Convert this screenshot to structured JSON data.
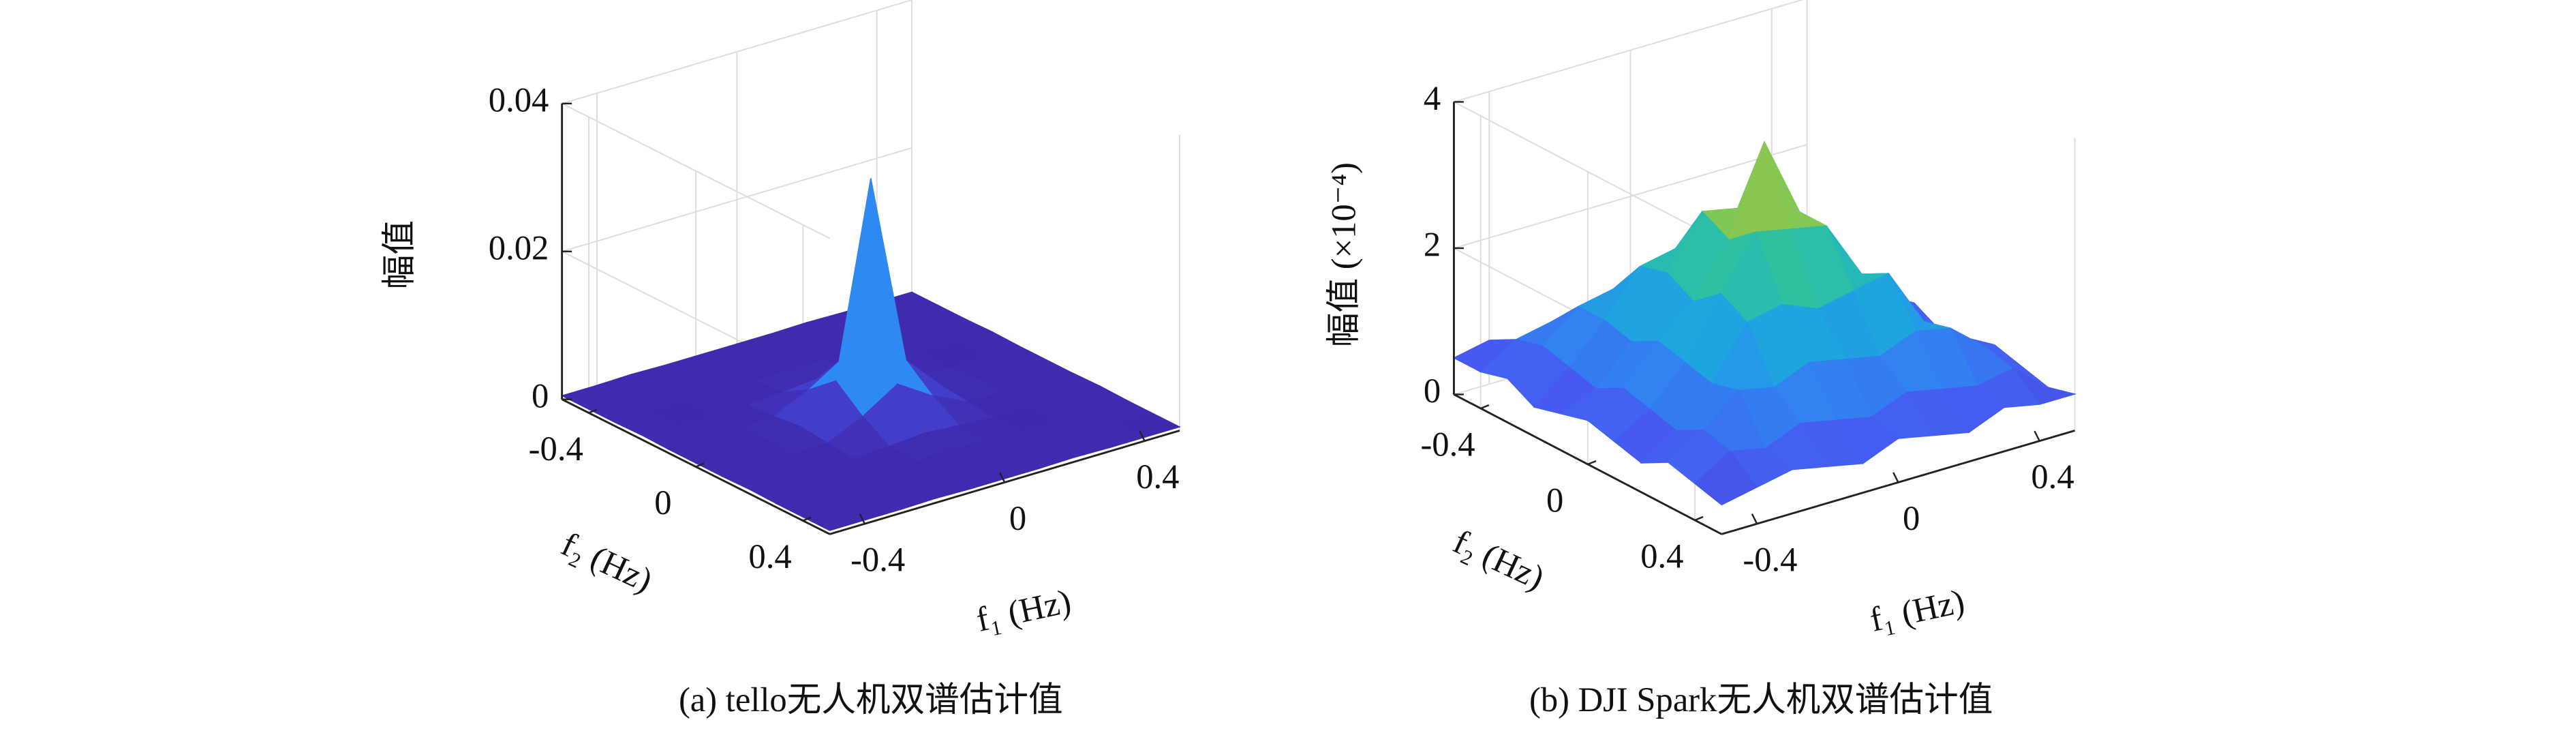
{
  "chart_data": [
    {
      "type": "surface",
      "caption": "(a) tello无人机双谱估计值",
      "xlabel": "f₁ (Hz)",
      "ylabel": "f₂ (Hz)",
      "zlabel": "幅值",
      "x": [
        -0.5,
        -0.4,
        -0.3,
        -0.2,
        -0.1,
        0,
        0.1,
        0.2,
        0.3,
        0.4,
        0.5
      ],
      "y": [
        -0.5,
        -0.4,
        -0.3,
        -0.2,
        -0.1,
        0,
        0.1,
        0.2,
        0.3,
        0.4,
        0.5
      ],
      "xlim": [
        -0.5,
        0.5
      ],
      "ylim": [
        -0.5,
        0.5
      ],
      "zlim": [
        0,
        0.04
      ],
      "xticks": [
        -0.4,
        0,
        0.4
      ],
      "yticks": [
        -0.4,
        0,
        0.4
      ],
      "zticks": [
        0,
        0.02,
        0.04
      ],
      "colormap": "parula",
      "grid": true,
      "z": [
        [
          0.0005,
          0.0005,
          0.0006,
          0.0005,
          0.0005,
          0.0005,
          0.0005,
          0.0006,
          0.0005,
          0.0005,
          0.0005
        ],
        [
          0.0005,
          0.0006,
          0.0005,
          0.0005,
          0.0006,
          0.0005,
          0.0006,
          0.0005,
          0.0005,
          0.0006,
          0.0005
        ],
        [
          0.0005,
          0.0005,
          0.0005,
          0.0006,
          0.0005,
          0.0008,
          0.0005,
          0.0005,
          0.0006,
          0.0005,
          0.0005
        ],
        [
          0.0006,
          0.0005,
          0.0005,
          0.0005,
          0.0008,
          0.0012,
          0.0008,
          0.0005,
          0.0005,
          0.0005,
          0.0006
        ],
        [
          0.0005,
          0.0005,
          0.0006,
          0.0008,
          0.003,
          0.006,
          0.003,
          0.0008,
          0.0005,
          0.0005,
          0.0005
        ],
        [
          0.0005,
          0.0006,
          0.0008,
          0.0012,
          0.006,
          0.032,
          0.006,
          0.0012,
          0.0008,
          0.0006,
          0.0005
        ],
        [
          0.0005,
          0.0005,
          0.0006,
          0.0008,
          0.003,
          0.006,
          0.003,
          0.0008,
          0.0006,
          0.0005,
          0.0005
        ],
        [
          0.0006,
          0.0005,
          0.0005,
          0.0005,
          0.0008,
          0.0012,
          0.0008,
          0.0005,
          0.0005,
          0.0005,
          0.0006
        ],
        [
          0.0005,
          0.0005,
          0.0006,
          0.0005,
          0.0005,
          0.0008,
          0.0005,
          0.0005,
          0.0005,
          0.0006,
          0.0005
        ],
        [
          0.0005,
          0.0006,
          0.0005,
          0.0005,
          0.0006,
          0.0005,
          0.0006,
          0.0005,
          0.0006,
          0.0005,
          0.0005
        ],
        [
          0.0005,
          0.0005,
          0.0005,
          0.0006,
          0.0005,
          0.0005,
          0.0005,
          0.0006,
          0.0005,
          0.0005,
          0.0005
        ]
      ]
    },
    {
      "type": "surface",
      "caption": "(b) DJI Spark无人机双谱估计值",
      "xlabel": "f₁ (Hz)",
      "ylabel": "f₂ (Hz)",
      "zlabel": "幅值 (×10⁻⁴)",
      "x": [
        -0.5,
        -0.4,
        -0.3,
        -0.2,
        -0.1,
        0,
        0.1,
        0.2,
        0.3,
        0.4,
        0.5
      ],
      "y": [
        -0.5,
        -0.4,
        -0.3,
        -0.2,
        -0.1,
        0,
        0.1,
        0.2,
        0.3,
        0.4,
        0.5
      ],
      "xlim": [
        -0.5,
        0.5
      ],
      "ylim": [
        -0.5,
        0.5
      ],
      "zlim": [
        0,
        4
      ],
      "xticks": [
        -0.4,
        0,
        0.4
      ],
      "yticks": [
        -0.4,
        0,
        0.4
      ],
      "zticks": [
        0,
        2,
        4
      ],
      "colormap": "parula",
      "grid": true,
      "z": [
        [
          0.5,
          0.6,
          0.4,
          0.5,
          0.6,
          0.5,
          0.4,
          0.6,
          0.5,
          0.4,
          0.5
        ],
        [
          0.5,
          0.8,
          0.9,
          0.7,
          0.8,
          0.9,
          0.8,
          0.7,
          0.9,
          0.8,
          0.6
        ],
        [
          0.6,
          0.9,
          1.3,
          1.4,
          1.2,
          1.3,
          1.4,
          1.2,
          1.3,
          0.8,
          0.5
        ],
        [
          0.4,
          0.8,
          1.3,
          1.9,
          2.0,
          1.8,
          2.0,
          1.9,
          1.4,
          0.7,
          0.5
        ],
        [
          0.5,
          0.7,
          1.2,
          2.0,
          2.7,
          2.6,
          2.8,
          1.9,
          1.2,
          0.8,
          0.6
        ],
        [
          0.6,
          0.9,
          1.4,
          1.8,
          2.5,
          3.7,
          2.6,
          2.0,
          1.3,
          0.9,
          0.4
        ],
        [
          0.5,
          0.8,
          1.3,
          2.1,
          2.8,
          2.7,
          2.6,
          1.8,
          1.4,
          0.7,
          0.5
        ],
        [
          0.4,
          0.7,
          1.2,
          1.9,
          2.0,
          1.8,
          1.9,
          2.0,
          1.2,
          0.8,
          0.6
        ],
        [
          0.6,
          0.9,
          1.3,
          1.2,
          1.4,
          1.3,
          1.2,
          1.4,
          1.3,
          0.9,
          0.5
        ],
        [
          0.5,
          0.8,
          0.7,
          0.9,
          0.8,
          0.7,
          0.9,
          0.8,
          0.7,
          0.8,
          0.4
        ],
        [
          0.4,
          0.5,
          0.6,
          0.5,
          0.4,
          0.6,
          0.5,
          0.4,
          0.6,
          0.5,
          0.5
        ]
      ]
    }
  ]
}
